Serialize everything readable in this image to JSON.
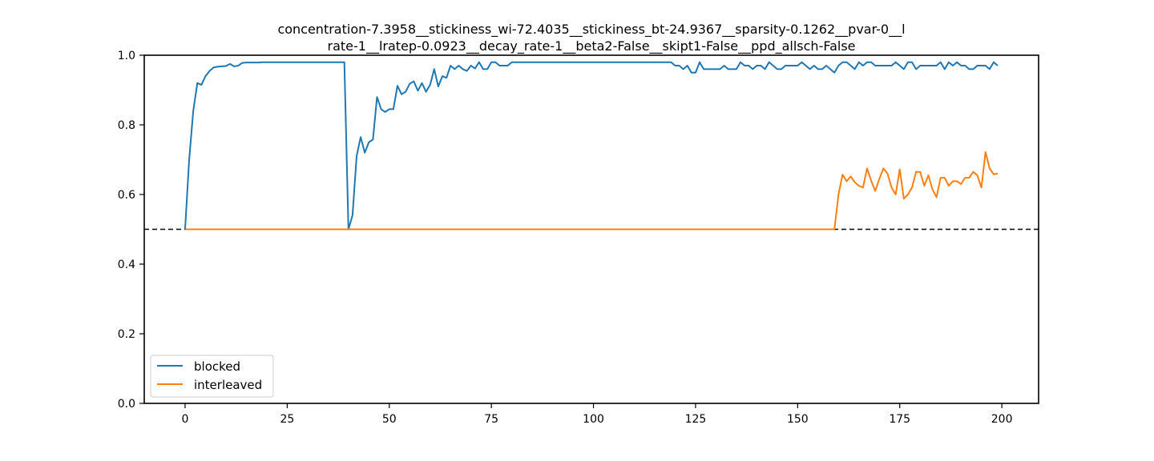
{
  "chart_data": {
    "type": "line",
    "title_lines": [
      "concentration-7.3958__stickiness_wi-72.4035__stickiness_bt-24.9367__sparsity-0.1262__pvar-0__l",
      "rate-1__lratep-0.0923__decay_rate-1__beta2-False__skipt1-False__ppd_allsch-False"
    ],
    "xlabel": "",
    "ylabel": "",
    "xlim": [
      -10,
      209
    ],
    "ylim": [
      0,
      1
    ],
    "xticks": [
      0,
      25,
      50,
      75,
      100,
      125,
      150,
      175,
      200
    ],
    "yticks": [
      0.0,
      0.2,
      0.4,
      0.6,
      0.8,
      1.0
    ],
    "ytick_labels": [
      "0.0",
      "0.2",
      "0.4",
      "0.6",
      "0.8",
      "1.0"
    ],
    "grid": false,
    "legend_position": "lower-left",
    "reference_line": {
      "y": 0.5,
      "style": "dashed",
      "color": "#000000"
    },
    "series": [
      {
        "name": "blocked",
        "color": "#1f77b4",
        "x": [
          0,
          1,
          2,
          3,
          4,
          5,
          6,
          7,
          8,
          9,
          10,
          11,
          12,
          13,
          14,
          15,
          16,
          17,
          18,
          19,
          20,
          21,
          22,
          23,
          24,
          25,
          26,
          27,
          28,
          29,
          30,
          31,
          32,
          33,
          34,
          35,
          36,
          37,
          38,
          39,
          40,
          41,
          42,
          43,
          44,
          45,
          46,
          47,
          48,
          49,
          50,
          51,
          52,
          53,
          54,
          55,
          56,
          57,
          58,
          59,
          60,
          61,
          62,
          63,
          64,
          65,
          66,
          67,
          68,
          69,
          70,
          71,
          72,
          73,
          74,
          75,
          76,
          77,
          78,
          79,
          80,
          81,
          82,
          83,
          84,
          85,
          86,
          87,
          88,
          89,
          90,
          91,
          92,
          93,
          94,
          95,
          96,
          97,
          98,
          99,
          100,
          101,
          102,
          103,
          104,
          105,
          106,
          107,
          108,
          109,
          110,
          111,
          112,
          113,
          114,
          115,
          116,
          117,
          118,
          119,
          120,
          121,
          122,
          123,
          124,
          125,
          126,
          127,
          128,
          129,
          130,
          131,
          132,
          133,
          134,
          135,
          136,
          137,
          138,
          139,
          140,
          141,
          142,
          143,
          144,
          145,
          146,
          147,
          148,
          149,
          150,
          151,
          152,
          153,
          154,
          155,
          156,
          157,
          158,
          159,
          160,
          161,
          162,
          163,
          164,
          165,
          166,
          167,
          168,
          169,
          170,
          171,
          172,
          173,
          174,
          175,
          176,
          177,
          178,
          179,
          180,
          181,
          182,
          183,
          184,
          185,
          186,
          187,
          188,
          189,
          190,
          191,
          192,
          193,
          194,
          195,
          196,
          197,
          198,
          199
        ],
        "values": [
          0.5,
          0.7,
          0.84,
          0.92,
          0.915,
          0.94,
          0.955,
          0.965,
          0.967,
          0.968,
          0.969,
          0.975,
          0.968,
          0.97,
          0.978,
          0.979,
          0.979,
          0.979,
          0.979,
          0.98,
          0.98,
          0.98,
          0.98,
          0.98,
          0.98,
          0.98,
          0.98,
          0.98,
          0.98,
          0.98,
          0.98,
          0.98,
          0.98,
          0.98,
          0.98,
          0.98,
          0.98,
          0.98,
          0.98,
          0.98,
          0.5,
          0.54,
          0.71,
          0.765,
          0.72,
          0.75,
          0.758,
          0.88,
          0.845,
          0.837,
          0.845,
          0.845,
          0.912,
          0.888,
          0.895,
          0.918,
          0.925,
          0.898,
          0.92,
          0.895,
          0.915,
          0.96,
          0.91,
          0.94,
          0.935,
          0.97,
          0.96,
          0.97,
          0.96,
          0.955,
          0.97,
          0.962,
          0.98,
          0.96,
          0.96,
          0.98,
          0.98,
          0.97,
          0.97,
          0.97,
          0.98,
          0.98,
          0.98,
          0.98,
          0.98,
          0.98,
          0.98,
          0.98,
          0.98,
          0.98,
          0.98,
          0.98,
          0.98,
          0.98,
          0.98,
          0.98,
          0.98,
          0.98,
          0.98,
          0.98,
          0.98,
          0.98,
          0.98,
          0.98,
          0.98,
          0.98,
          0.98,
          0.98,
          0.98,
          0.98,
          0.98,
          0.98,
          0.98,
          0.98,
          0.98,
          0.98,
          0.98,
          0.98,
          0.98,
          0.98,
          0.97,
          0.97,
          0.96,
          0.97,
          0.95,
          0.95,
          0.98,
          0.96,
          0.96,
          0.96,
          0.96,
          0.96,
          0.97,
          0.96,
          0.96,
          0.96,
          0.98,
          0.97,
          0.97,
          0.96,
          0.97,
          0.97,
          0.96,
          0.98,
          0.97,
          0.96,
          0.96,
          0.97,
          0.97,
          0.97,
          0.97,
          0.98,
          0.97,
          0.96,
          0.97,
          0.96,
          0.96,
          0.97,
          0.96,
          0.95,
          0.97,
          0.98,
          0.98,
          0.97,
          0.96,
          0.98,
          0.97,
          0.98,
          0.98,
          0.97,
          0.97,
          0.97,
          0.97,
          0.97,
          0.98,
          0.97,
          0.96,
          0.98,
          0.98,
          0.96,
          0.97,
          0.97,
          0.97,
          0.97,
          0.97,
          0.98,
          0.96,
          0.98,
          0.97,
          0.98,
          0.97,
          0.97,
          0.96,
          0.96,
          0.97,
          0.97,
          0.97,
          0.96,
          0.98,
          0.97
        ]
      },
      {
        "name": "interleaved",
        "color": "#ff7f0e",
        "x": [
          0,
          158,
          159,
          160,
          161,
          162,
          163,
          164,
          165,
          166,
          167,
          168,
          169,
          170,
          171,
          172,
          173,
          174,
          175,
          176,
          177,
          178,
          179,
          180,
          181,
          182,
          183,
          184,
          185,
          186,
          187,
          188,
          189,
          190,
          191,
          192,
          193,
          194,
          195,
          196,
          197,
          198,
          199
        ],
        "values": [
          0.5,
          0.5,
          0.5,
          0.6,
          0.657,
          0.638,
          0.652,
          0.635,
          0.625,
          0.62,
          0.675,
          0.64,
          0.61,
          0.645,
          0.675,
          0.66,
          0.62,
          0.6,
          0.672,
          0.588,
          0.6,
          0.62,
          0.665,
          0.665,
          0.625,
          0.655,
          0.615,
          0.592,
          0.648,
          0.648,
          0.625,
          0.638,
          0.638,
          0.63,
          0.648,
          0.648,
          0.665,
          0.655,
          0.62,
          0.722,
          0.675,
          0.658,
          0.66
        ]
      }
    ]
  }
}
